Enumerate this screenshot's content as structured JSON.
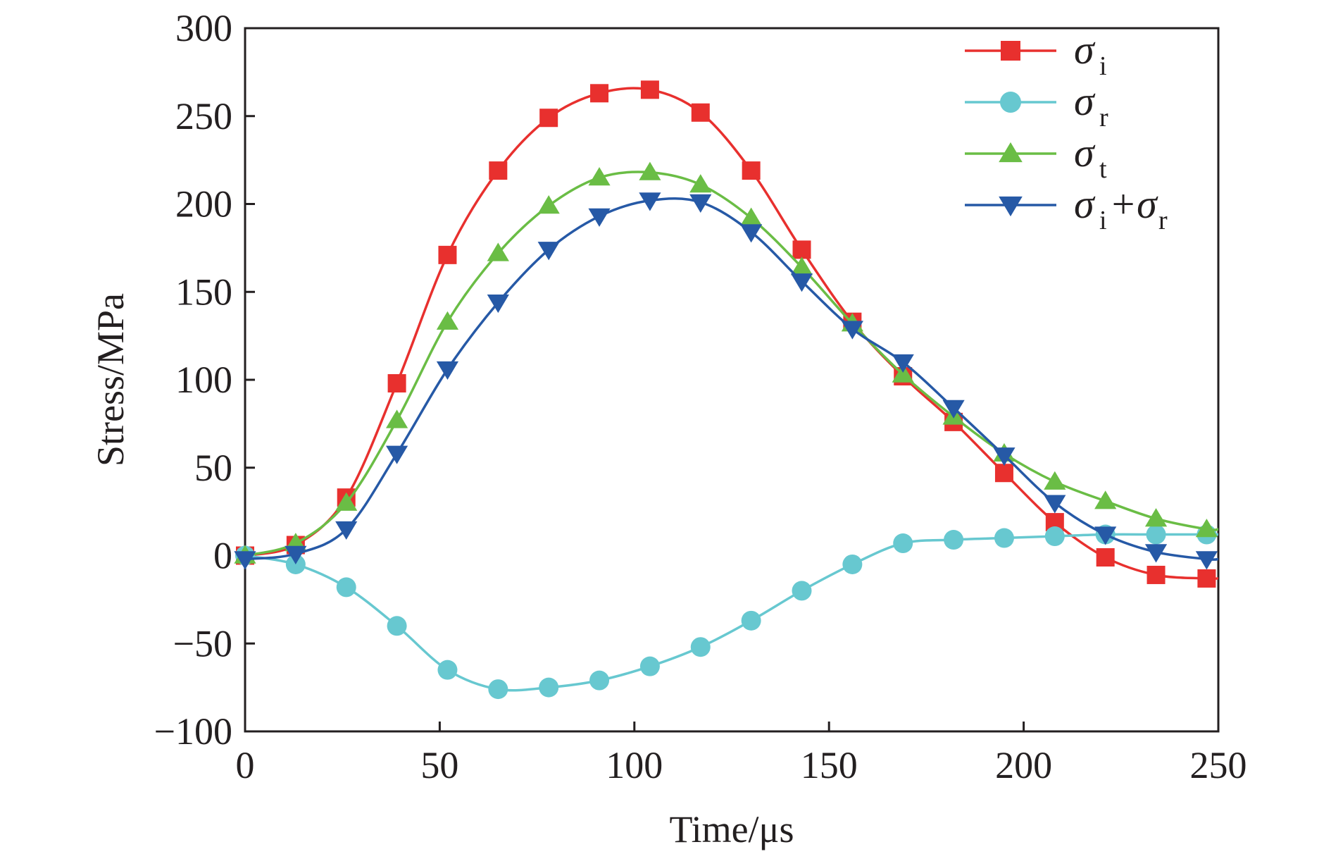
{
  "chart_data": {
    "type": "line",
    "title": "",
    "xlabel": "Time/μs",
    "ylabel": "Stress/MPa",
    "xlim": [
      0,
      250
    ],
    "ylim": [
      -100,
      300
    ],
    "xticks": [
      "0",
      "50",
      "100",
      "150",
      "200",
      "250"
    ],
    "yticks": [
      "−100",
      "−50",
      "0",
      "50",
      "100",
      "150",
      "200",
      "250",
      "300"
    ],
    "grid": false,
    "legend_position": "top-right",
    "x": [
      0,
      13,
      26,
      39,
      52,
      65,
      78,
      91,
      104,
      117,
      130,
      143,
      156,
      169,
      182,
      195,
      208,
      221,
      234,
      247
    ],
    "series": [
      {
        "name": "σi",
        "legend_symbol": "σ",
        "legend_subscript": "i",
        "color": "#e8302e",
        "marker": "square",
        "values": [
          0,
          6,
          33,
          98,
          171,
          219,
          249,
          263,
          265,
          252,
          219,
          174,
          133,
          102,
          76,
          47,
          19,
          -1,
          -11,
          -13
        ]
      },
      {
        "name": "σr",
        "legend_symbol": "σ",
        "legend_subscript": "r",
        "color": "#67c8d0",
        "marker": "circle",
        "values": [
          0,
          -5,
          -18,
          -40,
          -65,
          -76,
          -75,
          -71,
          -63,
          -52,
          -37,
          -20,
          -5,
          7,
          9,
          10,
          11,
          12,
          12,
          12
        ]
      },
      {
        "name": "σt",
        "legend_symbol": "σ",
        "legend_subscript": "t",
        "color": "#6abd45",
        "marker": "triangle-up",
        "values": [
          0,
          7,
          30,
          77,
          133,
          172,
          199,
          215,
          218,
          211,
          192,
          164,
          132,
          103,
          79,
          58,
          42,
          31,
          21,
          15
        ]
      },
      {
        "name": "σi+σr",
        "legend_parts": [
          {
            "sym": "σ",
            "sub": "i"
          },
          {
            "sym": "+σ",
            "sub": "r"
          }
        ],
        "color": "#2659a6",
        "marker": "triangle-down",
        "values": [
          -2,
          1,
          15,
          58,
          106,
          144,
          174,
          193,
          202,
          201,
          184,
          156,
          129,
          110,
          84,
          57,
          30,
          12,
          2,
          -2
        ]
      }
    ]
  }
}
